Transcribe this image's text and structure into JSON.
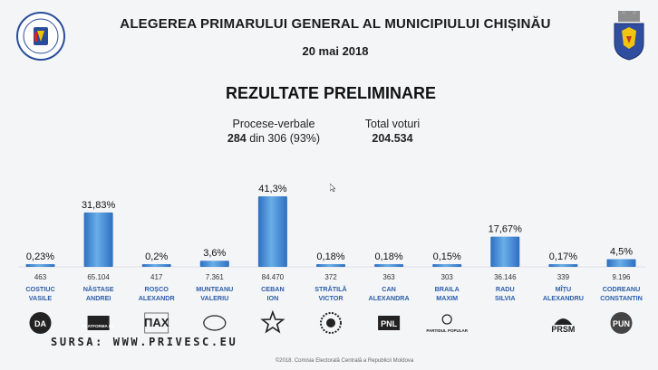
{
  "header": {
    "title": "ALEGEREA PRIMARULUI GENERAL AL MUNICIPIULUI CHIȘINĂU",
    "date": "20 mai 2018",
    "subtitle": "REZULTATE PRELIMINARE",
    "cec_logo_icon": "cec-seal-icon",
    "city_logo_icon": "chisinau-coat-of-arms-icon"
  },
  "stats": {
    "pv_label": "Procese-verbale",
    "pv_bold": "284",
    "pv_rest": " din 306 (93%)",
    "total_label": "Total voturi",
    "total_value": "204.534"
  },
  "chart_data": {
    "type": "bar",
    "categories": [
      "COSTIUC VASILE",
      "NĂSTASE ANDREI",
      "ROȘCO ALEXANDR",
      "MUNTEANU VALERIU",
      "CEBAN ION",
      "STRĂTILĂ VICTOR",
      "CAN ALEXANDRA",
      "BRAILA MAXIM",
      "RADU SILVIA",
      "MÎȚU ALEXANDRU",
      "CODREANU CONSTANTIN"
    ],
    "name_lines": [
      [
        "COSTIUC",
        "VASILE"
      ],
      [
        "NĂSTASE",
        "ANDREI"
      ],
      [
        "ROȘCO",
        "ALEXANDR"
      ],
      [
        "MUNTEANU",
        "VALERIU"
      ],
      [
        "CEBAN",
        "ION"
      ],
      [
        "STRĂTILĂ",
        "VICTOR"
      ],
      [
        "CAN",
        "ALEXANDRA"
      ],
      [
        "BRAILA",
        "MAXIM"
      ],
      [
        "RADU",
        "SILVIA"
      ],
      [
        "MÎȚU",
        "ALEXANDRU"
      ],
      [
        "CODREANU",
        "CONSTANTIN"
      ]
    ],
    "values": [
      0.23,
      31.83,
      0.2,
      3.6,
      41.3,
      0.18,
      0.18,
      0.15,
      17.67,
      0.17,
      4.5
    ],
    "percent_labels": [
      "0,23%",
      "31,83%",
      "0,2%",
      "3,6%",
      "41,3%",
      "0,18%",
      "0,18%",
      "0,15%",
      "17,67%",
      "0,17%",
      "4,5%"
    ],
    "votes": [
      "463",
      "65.104",
      "417",
      "7.361",
      "84.470",
      "372",
      "363",
      "303",
      "36.146",
      "339",
      "9.196"
    ],
    "party_icons": [
      "da-icon",
      "platforma-da-icon",
      "pax-icon",
      "dove-icon",
      "star-icon",
      "sunflower-icon",
      "pnl-icon",
      "partidul-popular-icon",
      "",
      "prsm-icon",
      "pun-icon"
    ],
    "party_texts": [
      "DA",
      "PLATFORMA DA",
      "ПАХ",
      "",
      "",
      "",
      "PNL",
      "PARTIDUL POPULAR",
      "",
      "PRSM",
      "PUN"
    ],
    "ylim": [
      0,
      45
    ],
    "colors": {
      "bar_top": "#6aaee8",
      "bar_bottom": "#2e6fc0",
      "name": "#2c5ea8"
    }
  },
  "watermark": "SURSA: WWW.PRIVESC.EU",
  "footer": "©2018. Comisia Electorală Centrală a Republicii Moldova"
}
